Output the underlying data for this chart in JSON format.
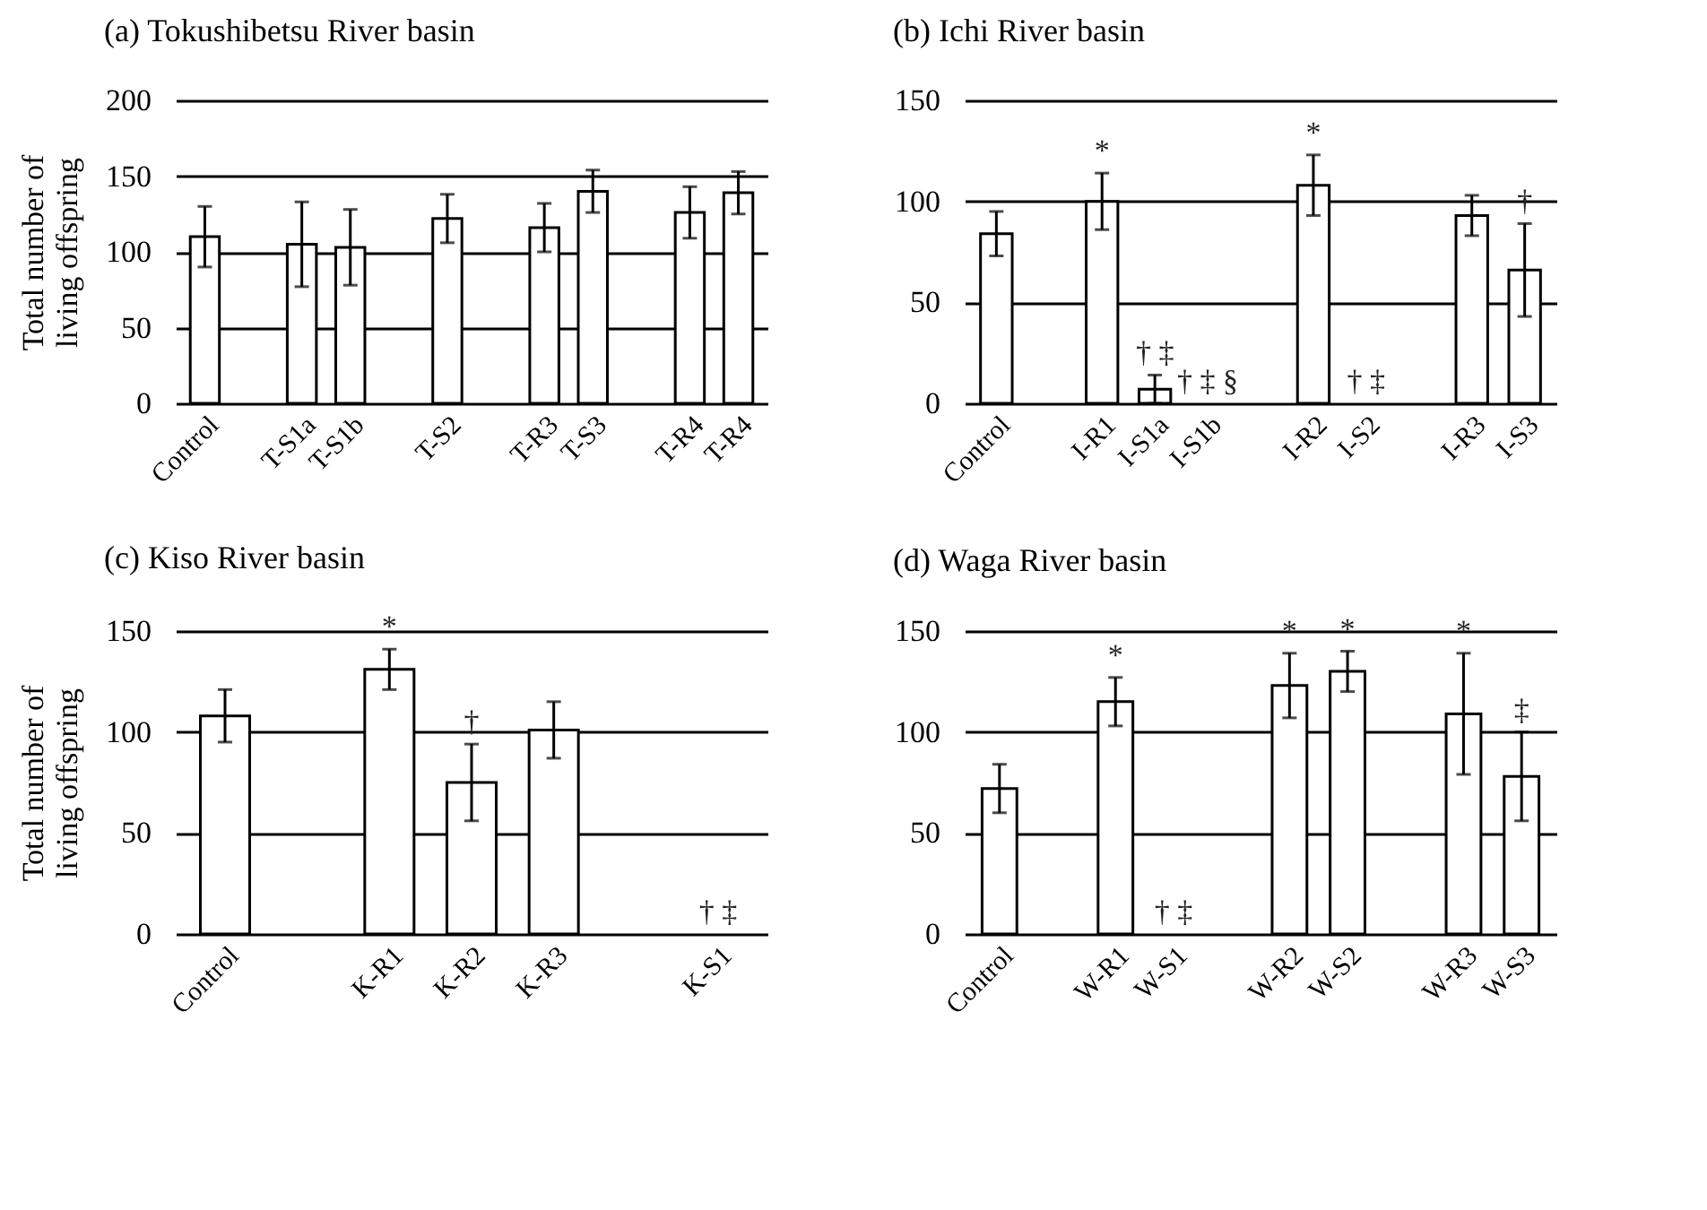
{
  "chart_data": [
    {
      "type": "bar",
      "title": "(a) Tokushibetsu River basin",
      "ylabel": "Total number of\nliving offspring",
      "categories": [
        "Control",
        null,
        "T-S1a",
        "T-S1b",
        null,
        "T-S2",
        null,
        "T-R3",
        "T-S3",
        null,
        "T-R4",
        "T-R4"
      ],
      "values": [
        110,
        null,
        105,
        103,
        null,
        122,
        null,
        116,
        140,
        null,
        126,
        139
      ],
      "errors": [
        20,
        null,
        28,
        25,
        null,
        16,
        null,
        16,
        14,
        null,
        17,
        14
      ],
      "color": "#ffffff",
      "ylim": [
        0,
        200
      ],
      "yticks": [
        0,
        50,
        100,
        150,
        200
      ],
      "grid": "y"
    },
    {
      "type": "bar",
      "title": "(b) Ichi River basin",
      "categories": [
        "Control",
        null,
        "I-R1",
        "I-S1a",
        "I-S1b",
        null,
        "I-R2",
        "I-S2",
        null,
        "I-R3",
        "I-S3"
      ],
      "values": [
        84,
        null,
        100,
        7,
        0,
        null,
        108,
        0,
        null,
        93,
        66
      ],
      "errors": [
        11,
        null,
        14,
        7,
        null,
        null,
        15,
        null,
        null,
        10,
        23
      ],
      "color": "#ffffff",
      "ylim": [
        0,
        150
      ],
      "yticks": [
        0,
        50,
        100,
        150
      ],
      "grid": "y",
      "annotations": [
        {
          "text": "*",
          "x": "I-R1",
          "y": 114
        },
        {
          "text": "† ‡",
          "x": "I-S1a",
          "y": 14
        },
        {
          "text": "† ‡ §",
          "x": "I-S1b",
          "y": 0
        },
        {
          "text": "*",
          "x": "I-R2",
          "y": 123
        },
        {
          "text": "† ‡",
          "x": "I-S2",
          "y": 0
        },
        {
          "text": "†",
          "x": "I-S3",
          "y": 89
        }
      ]
    },
    {
      "type": "bar",
      "title": "(c) Kiso River basin",
      "ylabel": "Total number of\nliving offspring",
      "categories": [
        "Control",
        null,
        "K-R1",
        "K-R2",
        "K-R3",
        null,
        "K-S1"
      ],
      "values": [
        108,
        null,
        131,
        75,
        101,
        null,
        0
      ],
      "errors": [
        13,
        null,
        10,
        19,
        14,
        null,
        null
      ],
      "color": "#ffffff",
      "ylim": [
        0,
        150
      ],
      "yticks": [
        0,
        50,
        100,
        150
      ],
      "grid": "y",
      "annotations": [
        {
          "text": "*",
          "x": "K-R1",
          "y": 141
        },
        {
          "text": "†",
          "x": "K-R2",
          "y": 94
        },
        {
          "text": "† ‡",
          "x": "K-S1",
          "y": 0
        }
      ]
    },
    {
      "type": "bar",
      "title": "(d) Waga River basin",
      "categories": [
        "Control",
        null,
        "W-R1",
        "W-S1",
        null,
        "W-R2",
        "W-S2",
        null,
        "W-R3",
        "W-S3"
      ],
      "values": [
        72,
        null,
        115,
        0,
        null,
        123,
        130,
        null,
        109,
        78
      ],
      "errors": [
        12,
        null,
        12,
        null,
        null,
        16,
        10,
        null,
        30,
        22
      ],
      "color": "#ffffff",
      "ylim": [
        0,
        150
      ],
      "yticks": [
        0,
        50,
        100,
        150
      ],
      "grid": "y",
      "annotations": [
        {
          "text": "*",
          "x": "W-R1",
          "y": 127
        },
        {
          "text": "† ‡",
          "x": "W-S1",
          "y": 0
        },
        {
          "text": "*",
          "x": "W-R2",
          "y": 139
        },
        {
          "text": "*",
          "x": "W-S2",
          "y": 140
        },
        {
          "text": "*",
          "x": "W-R3",
          "y": 139
        },
        {
          "text": "‡",
          "x": "W-S3",
          "y": 100
        }
      ]
    }
  ]
}
